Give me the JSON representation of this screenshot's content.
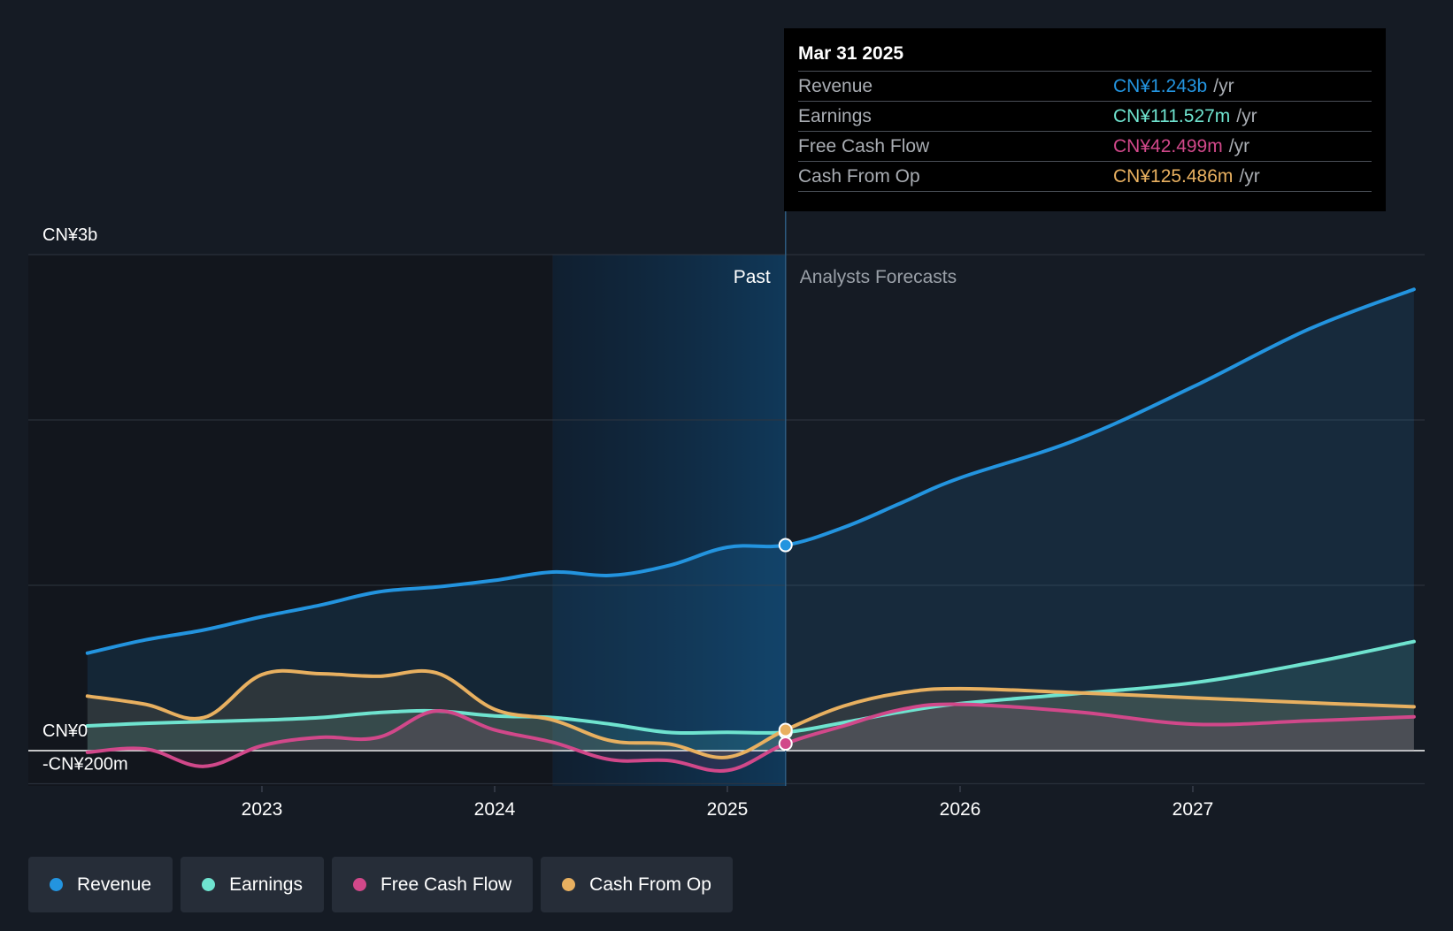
{
  "chart_data": {
    "type": "area",
    "currency_unit": "CN¥ (millions)",
    "ylim": [
      -200,
      3000
    ],
    "y_tick_labels": [
      {
        "value": 3000,
        "label": "CN¥3b"
      },
      {
        "value": 0,
        "label": "CN¥0"
      },
      {
        "value": -200,
        "label": "-CN¥200m"
      }
    ],
    "y_gridlines": [
      3000,
      2000,
      1000,
      0,
      -200
    ],
    "x_range": [
      2022.25,
      2027.95
    ],
    "x_ticks": [
      {
        "value": 2023,
        "label": "2023"
      },
      {
        "value": 2024,
        "label": "2024"
      },
      {
        "value": 2025,
        "label": "2025"
      },
      {
        "value": 2026,
        "label": "2026"
      },
      {
        "value": 2027,
        "label": "2027"
      }
    ],
    "divider_x": 2025.25,
    "past_highlight_start": 2024.25,
    "past_label": "Past",
    "forecast_label": "Analysts Forecasts",
    "series": [
      {
        "name": "Revenue",
        "color": "#2394df",
        "points": [
          [
            2022.25,
            590
          ],
          [
            2022.5,
            670
          ],
          [
            2022.75,
            730
          ],
          [
            2023.0,
            810
          ],
          [
            2023.25,
            880
          ],
          [
            2023.5,
            960
          ],
          [
            2023.75,
            990
          ],
          [
            2024.0,
            1030
          ],
          [
            2024.25,
            1080
          ],
          [
            2024.5,
            1060
          ],
          [
            2024.75,
            1120
          ],
          [
            2025.0,
            1230
          ],
          [
            2025.25,
            1243
          ],
          [
            2025.5,
            1350
          ],
          [
            2025.75,
            1500
          ],
          [
            2026.0,
            1650
          ],
          [
            2026.5,
            1880
          ],
          [
            2027.0,
            2200
          ],
          [
            2027.5,
            2550
          ],
          [
            2027.95,
            2790
          ]
        ]
      },
      {
        "name": "Earnings",
        "color": "#6fe3cf",
        "points": [
          [
            2022.25,
            150
          ],
          [
            2022.5,
            165
          ],
          [
            2022.75,
            175
          ],
          [
            2023.0,
            185
          ],
          [
            2023.25,
            200
          ],
          [
            2023.5,
            230
          ],
          [
            2023.75,
            240
          ],
          [
            2024.0,
            210
          ],
          [
            2024.25,
            200
          ],
          [
            2024.5,
            160
          ],
          [
            2024.75,
            110
          ],
          [
            2025.0,
            111
          ],
          [
            2025.25,
            111.5
          ],
          [
            2025.5,
            170
          ],
          [
            2025.75,
            235
          ],
          [
            2026.0,
            285
          ],
          [
            2026.5,
            345
          ],
          [
            2027.0,
            410
          ],
          [
            2027.5,
            530
          ],
          [
            2027.95,
            660
          ]
        ]
      },
      {
        "name": "Free Cash Flow",
        "color": "#d1488a",
        "points": [
          [
            2022.25,
            -10
          ],
          [
            2022.5,
            10
          ],
          [
            2022.75,
            -95
          ],
          [
            2023.0,
            30
          ],
          [
            2023.25,
            80
          ],
          [
            2023.5,
            80
          ],
          [
            2023.75,
            240
          ],
          [
            2024.0,
            125
          ],
          [
            2024.25,
            50
          ],
          [
            2024.5,
            -55
          ],
          [
            2024.75,
            -60
          ],
          [
            2025.0,
            -120
          ],
          [
            2025.25,
            42.5
          ],
          [
            2025.5,
            150
          ],
          [
            2025.75,
            250
          ],
          [
            2026.0,
            280
          ],
          [
            2026.5,
            235
          ],
          [
            2027.0,
            160
          ],
          [
            2027.5,
            180
          ],
          [
            2027.95,
            205
          ]
        ]
      },
      {
        "name": "Cash From Op",
        "color": "#e8b060",
        "points": [
          [
            2022.25,
            330
          ],
          [
            2022.5,
            280
          ],
          [
            2022.75,
            200
          ],
          [
            2023.0,
            460
          ],
          [
            2023.25,
            465
          ],
          [
            2023.5,
            450
          ],
          [
            2023.75,
            470
          ],
          [
            2024.0,
            250
          ],
          [
            2024.25,
            185
          ],
          [
            2024.5,
            60
          ],
          [
            2024.75,
            40
          ],
          [
            2025.0,
            -40
          ],
          [
            2025.25,
            125.5
          ],
          [
            2025.5,
            270
          ],
          [
            2025.75,
            350
          ],
          [
            2026.0,
            375
          ],
          [
            2026.5,
            350
          ],
          [
            2027.0,
            320
          ],
          [
            2027.5,
            290
          ],
          [
            2027.95,
            265
          ]
        ]
      }
    ]
  },
  "tooltip": {
    "date": "Mar 31 2025",
    "unit": "/yr",
    "rows": [
      {
        "label": "Revenue",
        "value": "CN¥1.243b",
        "color": "#2394df"
      },
      {
        "label": "Earnings",
        "value": "CN¥111.527m",
        "color": "#6fe3cf"
      },
      {
        "label": "Free Cash Flow",
        "value": "CN¥42.499m",
        "color": "#d1488a"
      },
      {
        "label": "Cash From Op",
        "value": "CN¥125.486m",
        "color": "#e8b060"
      }
    ]
  },
  "legend": [
    {
      "label": "Revenue",
      "color": "#2394df"
    },
    {
      "label": "Earnings",
      "color": "#6fe3cf"
    },
    {
      "label": "Free Cash Flow",
      "color": "#d1488a"
    },
    {
      "label": "Cash From Op",
      "color": "#e8b060"
    }
  ]
}
